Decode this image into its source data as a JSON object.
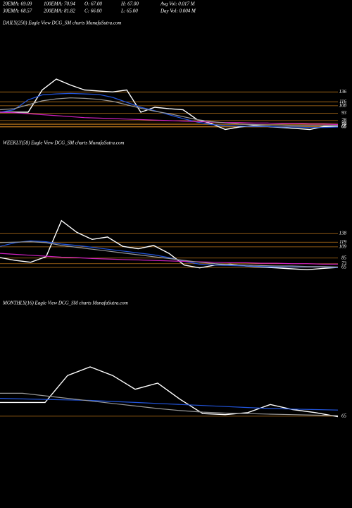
{
  "header": {
    "rows": [
      [
        "20EMA: 69.09",
        "100EMA: 70.94",
        "O: 67.00",
        "H: 67.00",
        "Avg Vol: 0.017 M"
      ],
      [
        "30EMA: 68.57",
        "200EMA: 81.82",
        "C: 66.00",
        "L: 65.00",
        "Day Vol: 0.004 M"
      ]
    ]
  },
  "chart_data": [
    {
      "type": "line",
      "title": "DAILY(250) Eagle  View  DCG_SM charts MunafaSutra.com",
      "ylim": [
        15,
        265
      ],
      "yticks": [
        136,
        116,
        108,
        93,
        78,
        73,
        70,
        66,
        65
      ],
      "level_color": "#b8741a",
      "series": [
        {
          "color": "#ffffff",
          "values": [
            95,
            95,
            95,
            140,
            162,
            150,
            140,
            138,
            136,
            140,
            95,
            105,
            102,
            100,
            80,
            72,
            60,
            65,
            68,
            66,
            64,
            62,
            60,
            66,
            66
          ]
        },
        {
          "color": "#2255dd",
          "values": [
            95,
            100,
            120,
            130,
            132,
            133,
            132,
            131,
            125,
            115,
            105,
            98,
            90,
            82,
            75,
            70,
            68,
            67,
            66,
            66,
            65,
            65,
            64,
            64,
            65
          ]
        },
        {
          "color": "#d020c0",
          "values": [
            95,
            94,
            92,
            90,
            88,
            86,
            84,
            83,
            82,
            81,
            80,
            79,
            78,
            77,
            76,
            75,
            74,
            74,
            73,
            73,
            72,
            72,
            71,
            71,
            70
          ]
        },
        {
          "color": "#999999",
          "values": [
            100,
            102,
            110,
            118,
            122,
            124,
            123,
            121,
            117,
            110,
            103,
            97,
            92,
            86,
            80,
            76,
            73,
            71,
            70,
            69,
            69,
            68,
            68,
            68,
            68
          ]
        }
      ]
    },
    {
      "type": "line",
      "title": "WEEKLY(58) Eagle  View  DCG_SM charts MunafaSutra.com",
      "ylim": [
        56,
        320
      ],
      "yticks": [
        138,
        119,
        109,
        85,
        73,
        65
      ],
      "level_color": "#b8741a",
      "series": [
        {
          "color": "#ffffff",
          "values": [
            86,
            80,
            76,
            88,
            165,
            140,
            125,
            130,
            110,
            105,
            112,
            95,
            70,
            64,
            70,
            72,
            68,
            66,
            64,
            62,
            60,
            63,
            65
          ]
        },
        {
          "color": "#2255dd",
          "values": [
            110,
            118,
            122,
            120,
            115,
            112,
            108,
            104,
            100,
            96,
            92,
            86,
            78,
            72,
            70,
            69,
            68,
            67,
            66,
            66,
            66,
            66,
            65
          ]
        },
        {
          "color": "#d020c0",
          "values": [
            95,
            93,
            91,
            89,
            87,
            86,
            84,
            83,
            82,
            81,
            80,
            79,
            78,
            77,
            76,
            75,
            75,
            74,
            74,
            73,
            73,
            72,
            72
          ]
        },
        {
          "color": "#999999",
          "values": [
            118,
            119,
            120,
            118,
            112,
            108,
            104,
            100,
            96,
            92,
            88,
            84,
            80,
            76,
            73,
            71,
            70,
            69,
            68,
            68,
            67,
            67,
            66
          ]
        }
      ]
    },
    {
      "type": "line",
      "title": "MONTHLY(16) Eagle  View  DCG_SM charts MunafaSutra.com",
      "ylim": [
        37,
        287
      ],
      "yticks": [
        65
      ],
      "level_color": "#b8741a",
      "series": [
        {
          "color": "#ffffff",
          "values": [
            92,
            92,
            92,
            145,
            162,
            145,
            118,
            130,
            98,
            70,
            68,
            72,
            88,
            78,
            72,
            64
          ]
        },
        {
          "color": "#2255dd",
          "values": [
            100,
            99,
            98,
            97,
            96,
            94,
            92,
            90,
            88,
            86,
            84,
            82,
            80,
            79,
            78,
            77
          ]
        },
        {
          "color": "#999999",
          "values": [
            110,
            110,
            105,
            100,
            95,
            90,
            85,
            80,
            76,
            73,
            71,
            70,
            69,
            68,
            67,
            66
          ]
        }
      ]
    }
  ]
}
